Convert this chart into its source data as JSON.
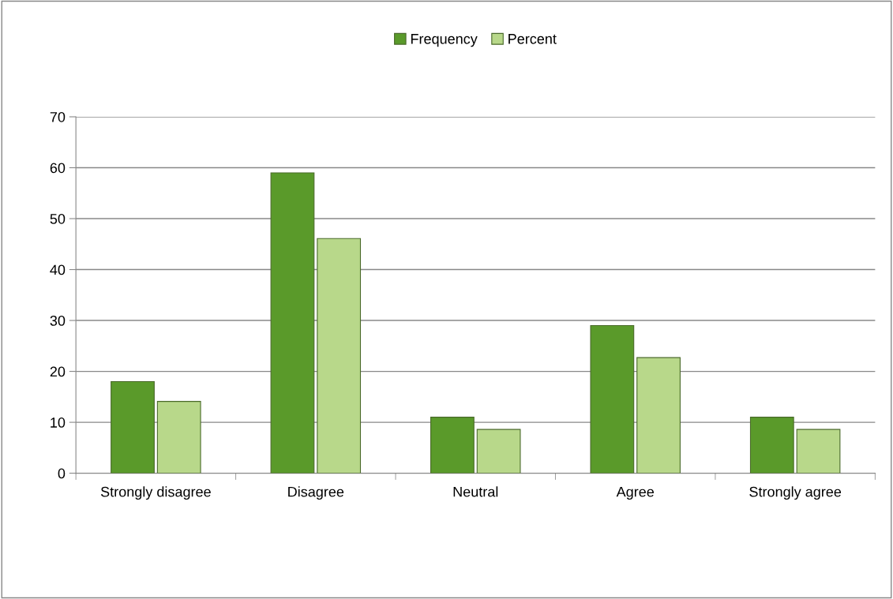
{
  "chart_data": {
    "type": "bar",
    "categories": [
      "Strongly disagree",
      "Disagree",
      "Neutral",
      "Agree",
      "Strongly agree"
    ],
    "series": [
      {
        "name": "Frequency",
        "color": "#5a9a2a",
        "values": [
          18,
          59,
          11,
          29,
          11
        ]
      },
      {
        "name": "Percent",
        "color": "#b8d88a",
        "values": [
          14.1,
          46.1,
          8.6,
          22.7,
          8.6
        ]
      }
    ],
    "ylim": [
      0,
      70
    ],
    "yticks": [
      0,
      10,
      20,
      30,
      40,
      50,
      60,
      70
    ],
    "grid": "y",
    "legend": "top"
  }
}
